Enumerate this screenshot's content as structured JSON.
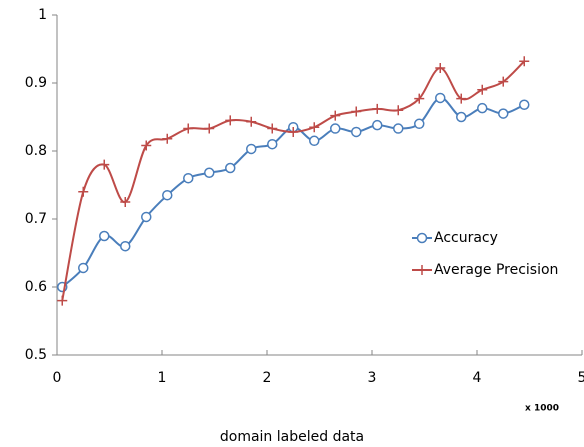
{
  "chart_data": {
    "type": "line",
    "x": [
      0.05,
      0.25,
      0.45,
      0.65,
      0.85,
      1.05,
      1.25,
      1.45,
      1.65,
      1.85,
      2.05,
      2.25,
      2.45,
      2.65,
      2.85,
      3.05,
      3.25,
      3.45,
      3.65,
      3.85,
      4.05,
      4.25,
      4.45
    ],
    "series": [
      {
        "name": "Accuracy",
        "color": "#4a7ebb",
        "marker": "circle",
        "values": [
          0.6,
          0.628,
          0.675,
          0.66,
          0.703,
          0.735,
          0.76,
          0.768,
          0.775,
          0.803,
          0.81,
          0.835,
          0.815,
          0.833,
          0.828,
          0.838,
          0.833,
          0.84,
          0.878,
          0.85,
          0.863,
          0.855,
          0.868
        ]
      },
      {
        "name": "Average Precision",
        "color": "#be4b48",
        "marker": "plus",
        "values": [
          0.58,
          0.74,
          0.78,
          0.725,
          0.808,
          0.818,
          0.833,
          0.833,
          0.845,
          0.843,
          0.833,
          0.828,
          0.835,
          0.852,
          0.858,
          0.862,
          0.86,
          0.877,
          0.922,
          0.877,
          0.89,
          0.902,
          0.932
        ]
      }
    ],
    "xlim": [
      0,
      5
    ],
    "xticks": [
      0,
      1,
      2,
      3,
      4,
      5
    ],
    "ylim": [
      0.5,
      1
    ],
    "yticks": [
      0.5,
      0.6,
      0.7,
      0.8,
      0.9,
      1
    ],
    "x_multiplier": "x 1000",
    "xlabel": "domain labeled data",
    "legend": "center right",
    "smooth": true,
    "grid": false
  }
}
